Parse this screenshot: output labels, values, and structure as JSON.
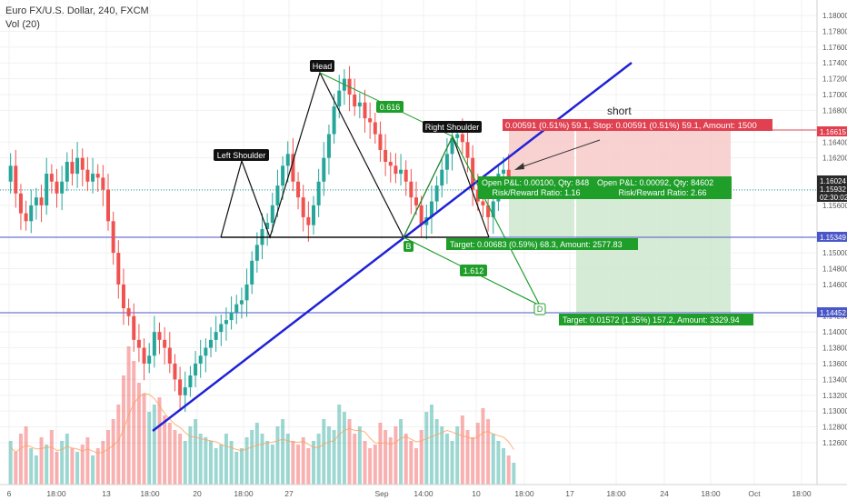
{
  "header": {
    "title": "Euro FX/U.S. Dollar, 240, FXCM",
    "volume_label": "Vol (20)"
  },
  "price_axis": {
    "ticks": [
      "1.18000",
      "1.17800",
      "1.17600",
      "1.17400",
      "1.17200",
      "1.17000",
      "1.16800",
      "1.16400",
      "1.16200",
      "1.15800",
      "1.15600",
      "1.15200",
      "1.15000",
      "1.14800",
      "1.14600",
      "1.14200",
      "1.14000",
      "1.13800",
      "1.13600",
      "1.13400",
      "1.13200",
      "1.13000",
      "1.12800",
      "1.12600"
    ],
    "markers": [
      {
        "label": "1.16615",
        "color": "#e04050"
      },
      {
        "label": "1.16024",
        "color": "#2a2a2a"
      },
      {
        "label": "1.15932",
        "color": "#2a2a2a"
      },
      {
        "label": "02:30:02",
        "color": "#2a2a2a"
      },
      {
        "label": "1.15349",
        "color": "#4a57c8"
      },
      {
        "label": "1.14452",
        "color": "#4a57c8"
      }
    ]
  },
  "time_axis": {
    "ticks": [
      "6",
      "18:00",
      "13",
      "18:00",
      "20",
      "18:00",
      "27",
      "Sep",
      "14:00",
      "10",
      "18:00",
      "17",
      "18:00",
      "24",
      "18:00",
      "Oct",
      "18:00"
    ]
  },
  "annotations": {
    "head": "Head",
    "left_shoulder": "Left Shoulder",
    "right_shoulder": "Right Shoulder",
    "fib_0616": "0.616",
    "fib_1612": "1.612",
    "point_b": "B",
    "point_d": "D",
    "short_note": "short"
  },
  "positions": {
    "stop_label": "0.00591 (0.51%) 59.1, Stop: 0.00591 (0.51%) 59.1, Amount: 1500",
    "open_pnl_1": "Open P&L: 0.00100, Qty: 848",
    "rr_1": "Risk/Reward Ratio: 1.16",
    "open_pnl_2": "Open P&L: 0.00092, Qty: 84602",
    "rr_2": "Risk/Reward Ratio: 2.66",
    "target_1": "Target: 0.00683 (0.59%) 68.3, Amount: 2577.83",
    "target_2": "Target: 0.01572 (1.35%) 157.2, Amount: 3329.94"
  },
  "colors": {
    "up": "#26a69a",
    "down": "#ef5350",
    "trendline": "#1f22d6",
    "neckline": "#4a57c8",
    "pattern": "#111111",
    "harmonic": "#1f9e2a",
    "profit_zone": "#cfe8cf",
    "loss_zone": "#f7c9c9"
  },
  "chart_data": {
    "type": "candlestick",
    "title": "Euro FX/U.S. Dollar, 240, FXCM",
    "ylim": [
      1.125,
      1.181
    ],
    "price_series": [
      1.159,
      1.161,
      1.1575,
      1.155,
      1.154,
      1.156,
      1.157,
      1.156,
      1.16,
      1.159,
      1.1575,
      1.159,
      1.1615,
      1.16,
      1.162,
      1.1605,
      1.159,
      1.16,
      1.1595,
      1.158,
      1.154,
      1.15,
      1.146,
      1.143,
      1.142,
      1.139,
      1.138,
      1.136,
      1.137,
      1.14,
      1.139,
      1.138,
      1.136,
      1.134,
      1.132,
      1.133,
      1.1345,
      1.136,
      1.137,
      1.138,
      1.139,
      1.14,
      1.141,
      1.1415,
      1.1425,
      1.1435,
      1.144,
      1.146,
      1.149,
      1.151,
      1.153,
      1.1538,
      1.156,
      1.1585,
      1.161,
      1.1625,
      1.159,
      1.157,
      1.1545,
      1.1535,
      1.156,
      1.159,
      1.162,
      1.165,
      1.1685,
      1.1705,
      1.172,
      1.17,
      1.1685,
      1.169,
      1.167,
      1.1665,
      1.165,
      1.163,
      1.1615,
      1.161,
      1.16,
      1.1605,
      1.159,
      1.157,
      1.156,
      1.1535,
      1.1545,
      1.1565,
      1.1585,
      1.1605,
      1.1625,
      1.1645,
      1.165,
      1.164,
      1.162,
      1.158,
      1.1565,
      1.156,
      1.1545,
      1.1565,
      1.16,
      1.1605,
      1.1593
    ],
    "volume_series": [
      12,
      9,
      14,
      16,
      10,
      8,
      13,
      11,
      15,
      9,
      12,
      14,
      10,
      9,
      11,
      13,
      8,
      10,
      12,
      15,
      18,
      22,
      30,
      38,
      34,
      28,
      25,
      20,
      22,
      24,
      19,
      17,
      15,
      14,
      12,
      16,
      18,
      14,
      13,
      12,
      10,
      11,
      14,
      12,
      9,
      10,
      13,
      15,
      17,
      14,
      12,
      11,
      16,
      18,
      14,
      12,
      11,
      13,
      10,
      12,
      14,
      18,
      16,
      15,
      22,
      20,
      18,
      14,
      16,
      12,
      10,
      11,
      17,
      15,
      13,
      16,
      18,
      14,
      12,
      10,
      15,
      20,
      22,
      18,
      16,
      14,
      12,
      16,
      19,
      15,
      13,
      17,
      21,
      18,
      14,
      12,
      10,
      8,
      6
    ],
    "levels": [
      {
        "name": "neckline",
        "price": 1.15349
      },
      {
        "name": "target-low",
        "price": 1.14452
      },
      {
        "name": "stop",
        "price": 1.16615
      },
      {
        "name": "last",
        "price": 1.15932
      }
    ]
  }
}
